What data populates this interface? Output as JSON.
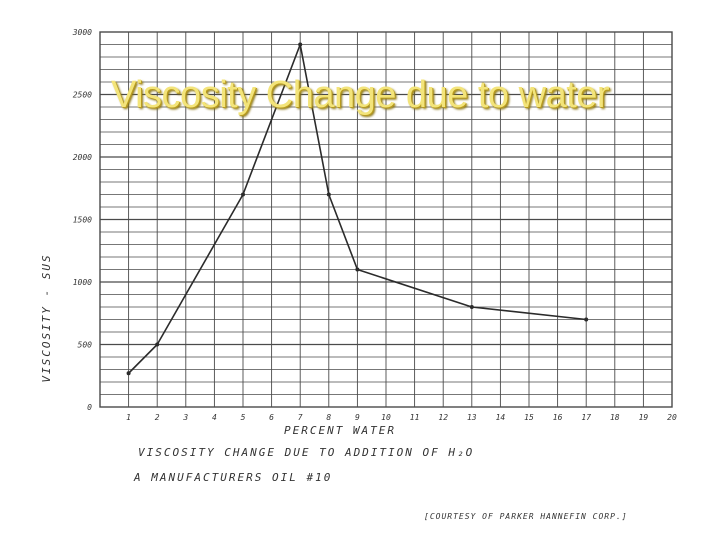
{
  "slide_title": "Viscosity Change due to water",
  "chart_data": {
    "type": "line",
    "title": "VISCOSITY CHANGE DUE TO ADDITION OF H₂O",
    "subtitle": "A MANUFACTURERS OIL #10",
    "credit": "[COURTESY OF PARKER HANNEFIN CORP.]",
    "xlabel": "PERCENT WATER",
    "ylabel": "VISCOSITY - SUS",
    "xlim": [
      0,
      20
    ],
    "ylim": [
      0,
      3000
    ],
    "x_ticks": [
      "1",
      "2",
      "3",
      "4",
      "5",
      "6",
      "7",
      "8",
      "9",
      "10",
      "11",
      "12",
      "13",
      "14",
      "15",
      "16",
      "17",
      "18",
      "19",
      "20"
    ],
    "y_ticks": [
      "0",
      "500",
      "1000",
      "1500",
      "2000",
      "2500",
      "3000"
    ],
    "grid": true,
    "series": [
      {
        "x": [
          1,
          2,
          5,
          7,
          8,
          9,
          13,
          17
        ],
        "y": [
          270,
          500,
          1700,
          2900,
          1700,
          1100,
          800,
          700
        ]
      }
    ],
    "colors": {
      "line": "#2b2b2b",
      "grid": "#4a4a4a"
    }
  }
}
